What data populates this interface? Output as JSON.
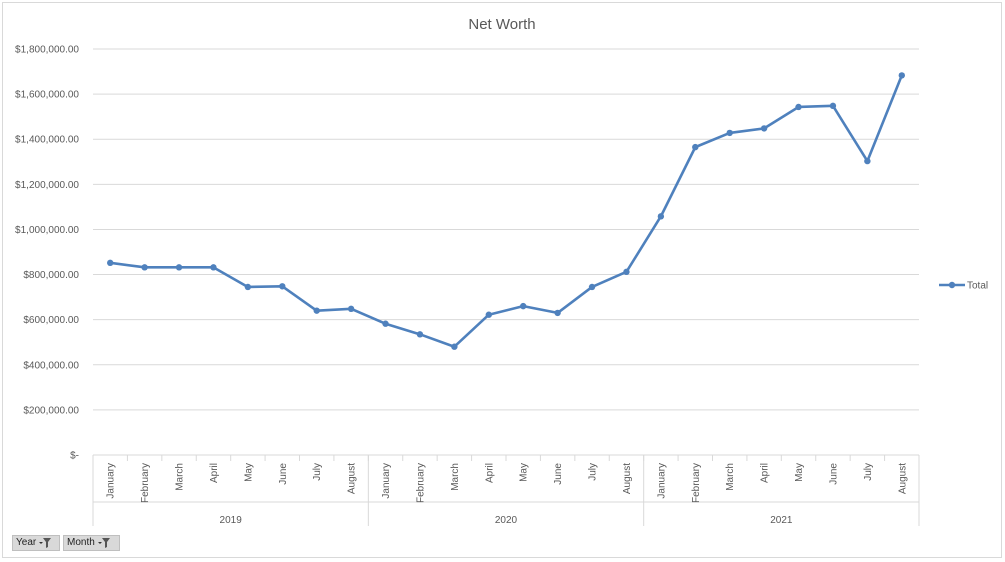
{
  "chart_data": {
    "type": "line",
    "title": "Net Worth",
    "xlabel": "",
    "ylabel": "",
    "ylim": [
      0,
      1800000
    ],
    "y_ticks": [
      {
        "value": 0,
        "label": "$-"
      },
      {
        "value": 200000,
        "label": "$200,000.00"
      },
      {
        "value": 400000,
        "label": "$400,000.00"
      },
      {
        "value": 600000,
        "label": "$600,000.00"
      },
      {
        "value": 800000,
        "label": "$800,000.00"
      },
      {
        "value": 1000000,
        "label": "$1,000,000.00"
      },
      {
        "value": 1200000,
        "label": "$1,200,000.00"
      },
      {
        "value": 1400000,
        "label": "$1,400,000.00"
      },
      {
        "value": 1600000,
        "label": "$1,600,000.00"
      },
      {
        "value": 1800000,
        "label": "$1,800,000.00"
      }
    ],
    "groups": [
      {
        "year": "2019",
        "months": [
          "January",
          "February",
          "March",
          "April",
          "May",
          "June",
          "July",
          "August"
        ]
      },
      {
        "year": "2020",
        "months": [
          "January",
          "February",
          "March",
          "April",
          "May",
          "June",
          "July",
          "August"
        ]
      },
      {
        "year": "2021",
        "months": [
          "January",
          "February",
          "March",
          "April",
          "May",
          "June",
          "July",
          "August"
        ]
      }
    ],
    "series": [
      {
        "name": "Total",
        "color": "#4f81bd",
        "values": [
          852000,
          832000,
          832000,
          832000,
          745000,
          748000,
          640000,
          648000,
          582000,
          535000,
          480000,
          622000,
          660000,
          630000,
          745000,
          812000,
          1058000,
          1365000,
          1428000,
          1448000,
          1543000,
          1548000,
          1303000,
          1683000
        ]
      }
    ],
    "grid": true,
    "legend_position": "right"
  },
  "filters": [
    {
      "label": "Year"
    },
    {
      "label": "Month"
    }
  ]
}
